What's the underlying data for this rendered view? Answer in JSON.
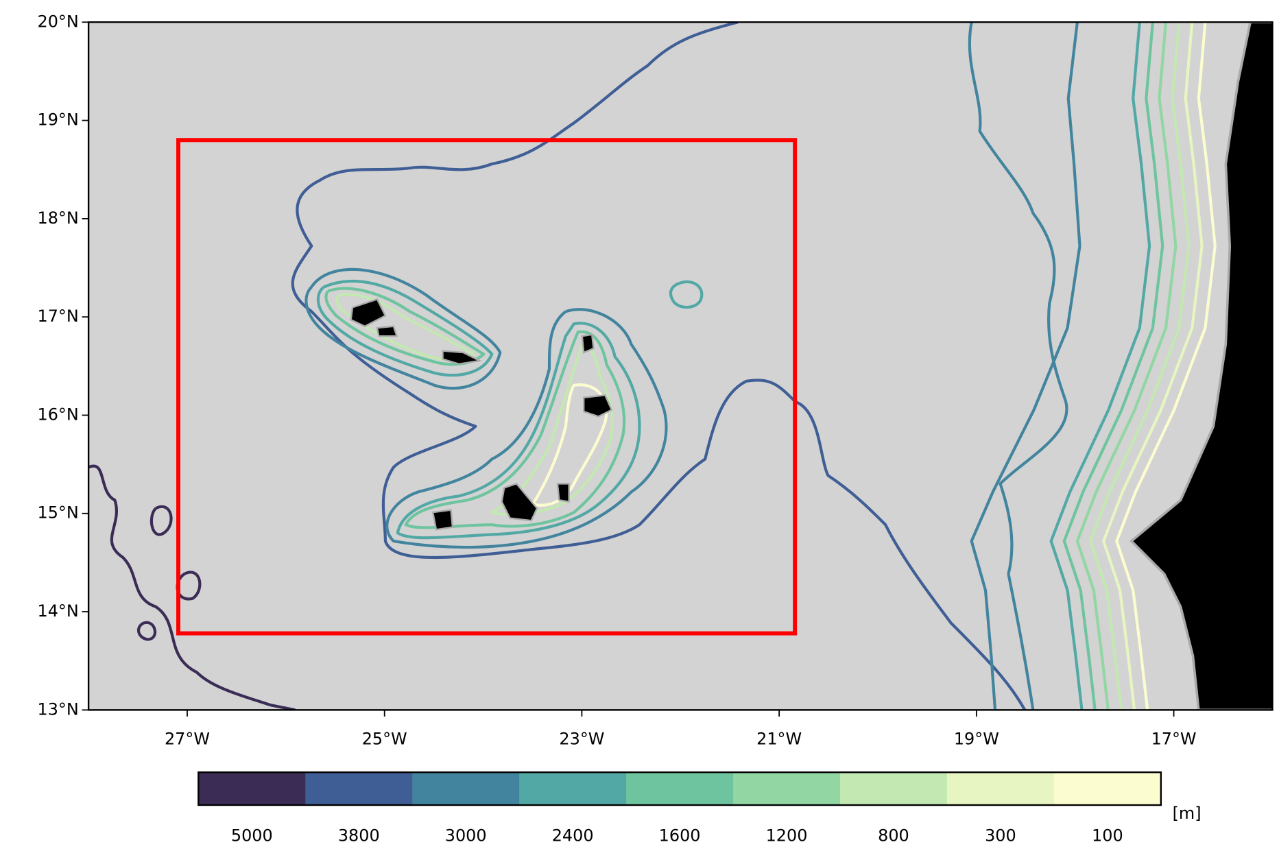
{
  "map": {
    "xlim": [
      -28,
      -16
    ],
    "ylim": [
      13,
      20
    ],
    "xticks": [
      {
        "value": -27,
        "label": "27°W"
      },
      {
        "value": -25,
        "label": "25°W"
      },
      {
        "value": -23,
        "label": "23°W"
      },
      {
        "value": -21,
        "label": "21°W"
      },
      {
        "value": -19,
        "label": "19°W"
      },
      {
        "value": -17,
        "label": "17°W"
      }
    ],
    "yticks": [
      {
        "value": 13,
        "label": "13°N"
      },
      {
        "value": 14,
        "label": "14°N"
      },
      {
        "value": 15,
        "label": "15°N"
      },
      {
        "value": 16,
        "label": "16°N"
      },
      {
        "value": 17,
        "label": "17°N"
      },
      {
        "value": 18,
        "label": "18°N"
      },
      {
        "value": 19,
        "label": "19°N"
      },
      {
        "value": 20,
        "label": "20°N"
      }
    ],
    "box": {
      "lon": [
        -27.09,
        -20.84
      ],
      "lat": [
        13.78,
        18.8
      ],
      "color": "#ff0000"
    },
    "colorbar": {
      "levels": [
        5000,
        3800,
        3000,
        2400,
        1600,
        1200,
        800,
        300,
        100
      ],
      "colors": [
        "#3b2c56",
        "#3f5e95",
        "#42849e",
        "#52a8a5",
        "#6ec49e",
        "#92d6a3",
        "#c3e8b2",
        "#e6f5c1",
        "#fbfcd0"
      ],
      "unit": "[m]"
    }
  }
}
